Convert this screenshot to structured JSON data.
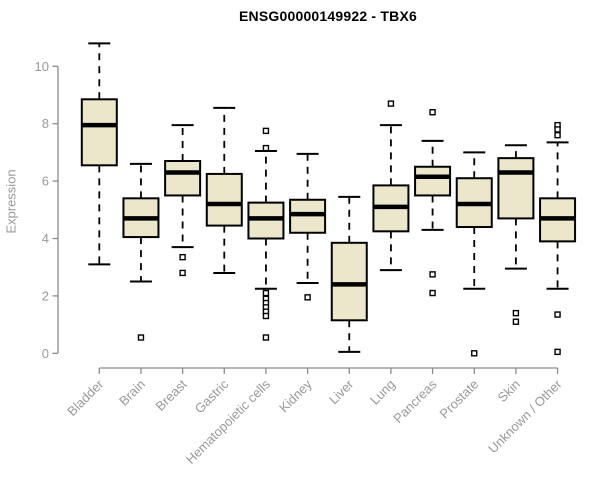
{
  "chart_data": {
    "type": "boxplot",
    "title": "ENSG00000149922 - TBX6",
    "ylabel": "Expression",
    "xlabel": "",
    "ylim": [
      0,
      10
    ],
    "yticks": [
      0,
      2,
      4,
      6,
      8,
      10
    ],
    "grid": false,
    "legend": "none",
    "categories": [
      "Bladder",
      "Brain",
      "Breast",
      "Gastric",
      "Hematopoietic cells",
      "Kidney",
      "Liver",
      "Lung",
      "Pancreas",
      "Prostate",
      "Skin",
      "Unknown / Other"
    ],
    "series": [
      {
        "name": "Bladder",
        "whisker_low": 3.1,
        "q1": 6.55,
        "median": 7.95,
        "q3": 8.85,
        "whisker_high": 10.8,
        "outliers": []
      },
      {
        "name": "Brain",
        "whisker_low": 2.5,
        "q1": 4.05,
        "median": 4.7,
        "q3": 5.4,
        "whisker_high": 6.6,
        "outliers": [
          0.55
        ]
      },
      {
        "name": "Breast",
        "whisker_low": 3.7,
        "q1": 5.5,
        "median": 6.3,
        "q3": 6.7,
        "whisker_high": 7.95,
        "outliers": [
          3.35,
          2.8
        ]
      },
      {
        "name": "Gastric",
        "whisker_low": 2.8,
        "q1": 4.45,
        "median": 5.2,
        "q3": 6.25,
        "whisker_high": 8.55,
        "outliers": []
      },
      {
        "name": "Hematopoietic cells",
        "whisker_low": 2.25,
        "q1": 4.0,
        "median": 4.7,
        "q3": 5.25,
        "whisker_high": 7.05,
        "outliers": [
          7.75,
          7.15,
          2.1,
          1.9,
          1.75,
          1.6,
          1.45,
          1.3,
          0.55
        ]
      },
      {
        "name": "Kidney",
        "whisker_low": 2.45,
        "q1": 4.2,
        "median": 4.85,
        "q3": 5.35,
        "whisker_high": 6.95,
        "outliers": [
          1.95
        ]
      },
      {
        "name": "Liver",
        "whisker_low": 0.05,
        "q1": 1.15,
        "median": 2.4,
        "q3": 3.85,
        "whisker_high": 5.45,
        "outliers": []
      },
      {
        "name": "Lung",
        "whisker_low": 2.9,
        "q1": 4.25,
        "median": 5.1,
        "q3": 5.85,
        "whisker_high": 7.95,
        "outliers": [
          8.7
        ]
      },
      {
        "name": "Pancreas",
        "whisker_low": 4.3,
        "q1": 5.5,
        "median": 6.15,
        "q3": 6.5,
        "whisker_high": 7.4,
        "outliers": [
          8.4,
          2.75,
          2.1
        ]
      },
      {
        "name": "Prostate",
        "whisker_low": 2.25,
        "q1": 4.4,
        "median": 5.2,
        "q3": 6.1,
        "whisker_high": 7.0,
        "outliers": [
          0.0
        ]
      },
      {
        "name": "Skin",
        "whisker_low": 2.95,
        "q1": 4.7,
        "median": 6.3,
        "q3": 6.8,
        "whisker_high": 7.25,
        "outliers": [
          1.4,
          1.1
        ]
      },
      {
        "name": "Unknown / Other",
        "whisker_low": 2.25,
        "q1": 3.9,
        "median": 4.7,
        "q3": 5.4,
        "whisker_high": 7.35,
        "outliers": [
          7.95,
          7.8,
          7.6,
          1.35,
          0.05
        ]
      }
    ],
    "colors": {
      "box_fill": "#ece7cb",
      "box_stroke": "#000000",
      "median": "#000000",
      "whisker": "#000000",
      "outlier_stroke": "#000000",
      "outlier_fill": "#ffffff",
      "axis": "#8c8c8c",
      "tick_label": "#999999",
      "title": "#000000",
      "background": "#ffffff"
    }
  }
}
